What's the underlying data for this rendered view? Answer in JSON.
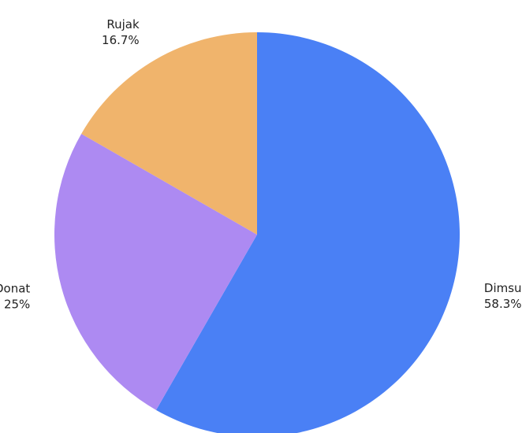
{
  "chart_data": {
    "type": "pie",
    "title": "",
    "start_angle_deg": 0,
    "direction": "clockwise",
    "slices": [
      {
        "label": "Dimsum",
        "value": 58.3,
        "value_label": "58.3%",
        "color": "#4a80f5"
      },
      {
        "label": "Donat",
        "value": 25.0,
        "value_label": "25%",
        "color": "#ad8af2"
      },
      {
        "label": "Rujak",
        "value": 16.7,
        "value_label": "16.7%",
        "color": "#f0b46c"
      }
    ]
  }
}
